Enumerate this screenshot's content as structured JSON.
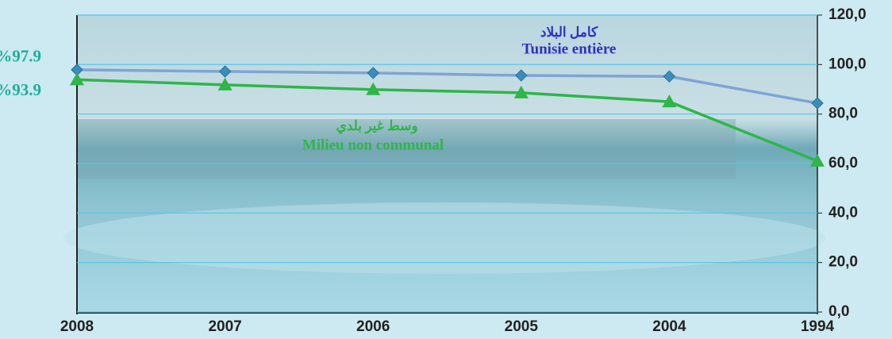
{
  "chart_data": {
    "type": "line",
    "categories": [
      "2008",
      "2007",
      "2006",
      "2005",
      "2004",
      "1994"
    ],
    "series": [
      {
        "name": "Tunisie entière",
        "name_ar": "كامل البلاد",
        "color": "#7fa4d4",
        "marker_color": "#3a8dbd",
        "marker": "diamond",
        "values": [
          97.9,
          97.2,
          96.6,
          95.6,
          95.2,
          84.4
        ],
        "value_labels": [
          "%97.9",
          null,
          null,
          null,
          null,
          null
        ],
        "label_color": "#1fae9a"
      },
      {
        "name": "Milieu non communal",
        "name_ar": "وسط غير بلدي",
        "color": "#2fb54a",
        "marker_color": "#2fb54a",
        "marker": "triangle",
        "values": [
          93.9,
          91.8,
          89.9,
          88.6,
          85.0,
          61.0
        ],
        "value_labels": [
          "%93.9",
          null,
          null,
          null,
          null,
          null
        ],
        "label_color": "#1fae9a"
      }
    ],
    "ylim": [
      0,
      120
    ],
    "yticks": [
      {
        "value": 0,
        "label": "0,0"
      },
      {
        "value": 20,
        "label": "20,0"
      },
      {
        "value": 40,
        "label": "40,0"
      },
      {
        "value": 60,
        "label": "60,0"
      },
      {
        "value": 80,
        "label": "80,0"
      },
      {
        "value": 100,
        "label": "100,0"
      },
      {
        "value": 120,
        "label": "120,0"
      }
    ],
    "y_axis_side": "right",
    "grid": true
  }
}
